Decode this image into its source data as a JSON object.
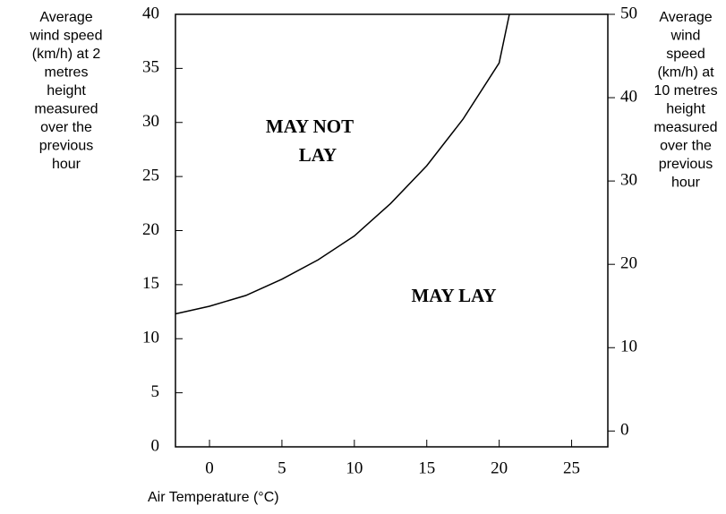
{
  "chart_data": {
    "type": "line",
    "xlabel": "Air Temperature (°C)",
    "ylabel": [
      "Average",
      "wind speed",
      "(km/h) at 2",
      "metres",
      "height",
      "measured",
      "over the",
      "previous",
      "hour"
    ],
    "y2label": [
      "Average",
      "wind",
      "speed",
      "(km/h) at",
      "10 metres",
      "height",
      "measured",
      "over the",
      "previous",
      "hour"
    ],
    "annotations": [
      [
        "MAY  NOT",
        "LAY"
      ],
      [
        "MAY  LAY"
      ]
    ],
    "xlim": [
      -2.35,
      27.5
    ],
    "xticks": [
      0,
      5,
      10,
      15,
      20,
      25
    ],
    "ylim": [
      0,
      40
    ],
    "yticks": [
      0,
      5,
      10,
      15,
      20,
      25,
      30,
      35,
      40
    ],
    "y2lim": [
      -1.9,
      50
    ],
    "y2ticks": [
      0,
      10,
      20,
      30,
      40,
      50
    ],
    "x": [
      -2.35,
      0,
      2.5,
      5,
      7.5,
      10,
      12.5,
      15,
      17.5,
      20,
      20.7
    ],
    "series": [
      {
        "color": "#000000",
        "values": [
          12.3,
          13,
          14,
          15.5,
          17.3,
          19.5,
          22.5,
          26,
          30.3,
          35.5,
          40
        ]
      }
    ]
  }
}
